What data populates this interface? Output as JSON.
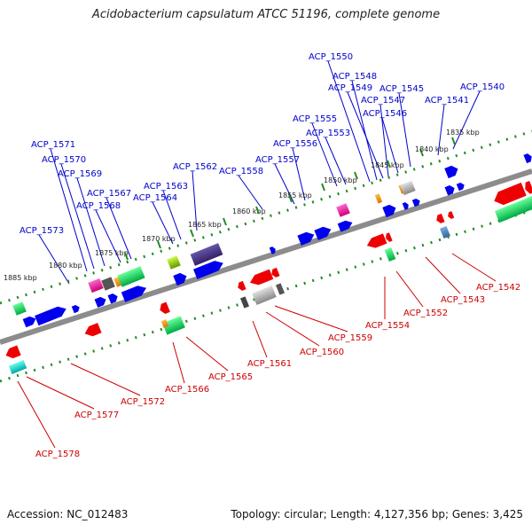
{
  "title": "Acidobacterium capsulatum ATCC 51196, complete genome",
  "accession": "Accession: NC_012483",
  "topology": "Topology: circular; Length: 4,127,356 bp; Genes: 3,425",
  "colors": {
    "backbone": "#8c8c8c",
    "forward_track": "#228b22",
    "label_forward": "#0000cc",
    "label_reverse": "#cc0000",
    "cds_forward": "#0000ee",
    "cds_reverse": "#ee0000"
  },
  "scale_ticks": [
    "1835 kbp",
    "1840 kbp",
    "1845 kbp",
    "1850 kbp",
    "1855 kbp",
    "1860 kbp",
    "1865 kbp",
    "1870 kbp",
    "1875 kbp",
    "1880 kbp",
    "1885 kbp"
  ],
  "labels_forward": [
    "ACP_1550",
    "ACP_1548",
    "ACP_1549",
    "ACP_1547",
    "ACP_1545",
    "ACP_1546",
    "ACP_1540",
    "ACP_1541",
    "ACP_1555",
    "ACP_1553",
    "ACP_1556",
    "ACP_1557",
    "ACP_1558",
    "ACP_1562",
    "ACP_1563",
    "ACP_1564",
    "ACP_1567",
    "ACP_1568",
    "ACP_1569",
    "ACP_1570",
    "ACP_1571",
    "ACP_1573"
  ],
  "labels_reverse": [
    "ACP_1542",
    "ACP_1543",
    "ACP_1552",
    "ACP_1554",
    "ACP_1559",
    "ACP_1560",
    "ACP_1561",
    "ACP_1565",
    "ACP_1566",
    "ACP_1572",
    "ACP_1577",
    "ACP_1578"
  ],
  "legend": []
}
